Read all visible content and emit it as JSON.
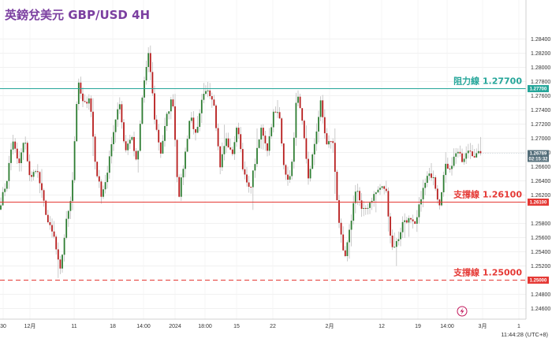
{
  "title": "英鎊兌美元 GBP/USD 4H",
  "colors": {
    "up": "#2e7d32",
    "down": "#b71c1c",
    "wick": "#bdbdbd",
    "resistance": "#26a69a",
    "support": "#e53935",
    "title": "#7b3fa0",
    "last_price": "#546e7a"
  },
  "chart_data": {
    "type": "candlestick",
    "instrument": "GBP/USD",
    "timeframe": "4H",
    "ylim": [
      1.2445,
      1.2895
    ],
    "y_ticks": [
      "1.28400",
      "1.28200",
      "1.28000",
      "1.27800",
      "1.27600",
      "1.27400",
      "1.27200",
      "1.27000",
      "1.26800",
      "1.26600",
      "1.26400",
      "1.26200",
      "1.25800",
      "1.25600",
      "1.25400",
      "1.25200",
      "1.24800",
      "1.24600"
    ],
    "x_ticks": [
      "30",
      "12月",
      "11",
      "18",
      "14:00",
      "2024",
      "18:00",
      "15",
      "22",
      "2月",
      "12",
      "19",
      "14:00",
      "3月",
      "1"
    ],
    "horizontal_lines": [
      {
        "name": "阻力線",
        "value": 1.277,
        "label": "阻力線 1.27700",
        "tag": "1.27700",
        "style": "solid",
        "color": "#26a69a"
      },
      {
        "name": "支撐線",
        "value": 1.261,
        "label": "支撐線 1.26100",
        "tag": "1.26100",
        "style": "solid",
        "color": "#e53935"
      },
      {
        "name": "支撐線",
        "value": 1.25,
        "label": "支撐線 1.25000",
        "tag": "1.25000",
        "style": "dashed",
        "color": "#e53935"
      }
    ],
    "last_price": {
      "value": 1.26789,
      "label": "1.26789",
      "countdown": "02:15:32"
    },
    "path_anchors": [
      1.261,
      1.264,
      1.27,
      1.266,
      1.27,
      1.264,
      1.266,
      1.262,
      1.258,
      1.256,
      1.251,
      1.258,
      1.2625,
      1.278,
      1.2745,
      1.276,
      1.266,
      1.262,
      1.265,
      1.271,
      1.2755,
      1.268,
      1.2705,
      1.266,
      1.277,
      1.282,
      1.2725,
      1.268,
      1.273,
      1.276,
      1.2615,
      1.267,
      1.2735,
      1.27,
      1.2755,
      1.277,
      1.275,
      1.266,
      1.27,
      1.2675,
      1.272,
      1.265,
      1.2625,
      1.267,
      1.2715,
      1.2685,
      1.2735,
      1.2735,
      1.2645,
      1.2645,
      1.2765,
      1.2715,
      1.264,
      1.2695,
      1.275,
      1.269,
      1.27,
      1.259,
      1.2525,
      1.2575,
      1.2635,
      1.2595,
      1.2605,
      1.262,
      1.263,
      1.263,
      1.2545,
      1.2555,
      1.2585,
      1.2585,
      1.2575,
      1.262,
      1.2645,
      1.265,
      1.2605,
      1.266,
      1.266,
      1.2685,
      1.2665,
      1.2685,
      1.2675,
      1.2679
    ],
    "axis_clock": "11:44:28 (UTC+8)"
  }
}
